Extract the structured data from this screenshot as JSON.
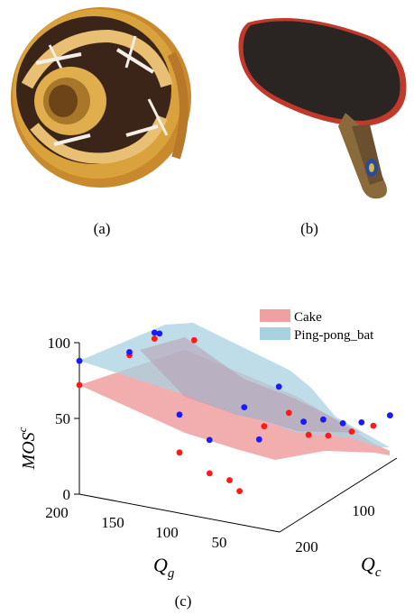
{
  "captions": {
    "a": "(a)",
    "b": "(b)",
    "c": "(c)"
  },
  "images": {
    "a": {
      "subject": "cake",
      "colors": {
        "crust": "#d9a23c",
        "chocolate": "#3b2418",
        "icing": "#f3efe6"
      }
    },
    "b": {
      "subject": "ping-pong bat",
      "colors": {
        "rubber": "#2a2422",
        "edge": "#c0392b",
        "handle": "#8a6a3a"
      }
    }
  },
  "chart_data": {
    "type": "scatter",
    "subtype": "3d-surface-scatter",
    "xlabel_main": "Q",
    "xlabel_sub": "g",
    "ylabel_main": "Q",
    "ylabel_sub": "c",
    "zlabel_main": "MOS",
    "zlabel_sup": "c",
    "x_ticks": [
      "200",
      "150",
      "100",
      "50"
    ],
    "y_ticks": [
      "100",
      "200"
    ],
    "z_ticks": [
      "0",
      "50",
      "100"
    ],
    "legend": [
      {
        "name": "Cake",
        "color": "#f0a0a0",
        "point_color": "#ff1a1a"
      },
      {
        "name": "Ping-pong_bat",
        "color": "#a8d2e2",
        "point_color": "#1a1aff"
      }
    ],
    "legend_position": "top-right",
    "series": [
      {
        "name": "Cake",
        "points": [
          {
            "qg": 200,
            "qc": 0,
            "mos": 72
          },
          {
            "qg": 150,
            "qc": 0,
            "mos": 98
          },
          {
            "qg": 125,
            "qc": 0,
            "mos": 112
          },
          {
            "qg": 100,
            "qc": 0,
            "mos": 40
          },
          {
            "qg": 100,
            "qc": 30,
            "mos": 108
          },
          {
            "qg": 70,
            "qc": 0,
            "mos": 30
          },
          {
            "qg": 50,
            "qc": 0,
            "mos": 28
          },
          {
            "qg": 40,
            "qc": 0,
            "mos": 22
          },
          {
            "qg": 30,
            "qc": 30,
            "mos": 60
          },
          {
            "qg": 20,
            "qc": 60,
            "mos": 64
          },
          {
            "qg": 15,
            "qc": 90,
            "mos": 44
          },
          {
            "qg": 10,
            "qc": 120,
            "mos": 38
          },
          {
            "qg": 6,
            "qc": 160,
            "mos": 33
          },
          {
            "qg": 4,
            "qc": 200,
            "mos": 29
          },
          {
            "qg": 2,
            "qc": 230,
            "mos": 30
          }
        ]
      },
      {
        "name": "Ping-pong_bat",
        "points": [
          {
            "qg": 200,
            "qc": 0,
            "mos": 88
          },
          {
            "qg": 150,
            "qc": 0,
            "mos": 100
          },
          {
            "qg": 125,
            "qc": 0,
            "mos": 116
          },
          {
            "qg": 120,
            "qc": 0,
            "mos": 116
          },
          {
            "qg": 100,
            "qc": 0,
            "mos": 65
          },
          {
            "qg": 70,
            "qc": 0,
            "mos": 52
          },
          {
            "qg": 50,
            "qc": 30,
            "mos": 70
          },
          {
            "qg": 40,
            "qc": 40,
            "mos": 48
          },
          {
            "qg": 30,
            "qc": 60,
            "mos": 80
          },
          {
            "qg": 20,
            "qc": 90,
            "mos": 52
          },
          {
            "qg": 15,
            "qc": 120,
            "mos": 48
          },
          {
            "qg": 10,
            "qc": 150,
            "mos": 40
          },
          {
            "qg": 6,
            "qc": 180,
            "mos": 35
          },
          {
            "qg": 2,
            "qc": 230,
            "mos": 30
          }
        ]
      }
    ]
  }
}
